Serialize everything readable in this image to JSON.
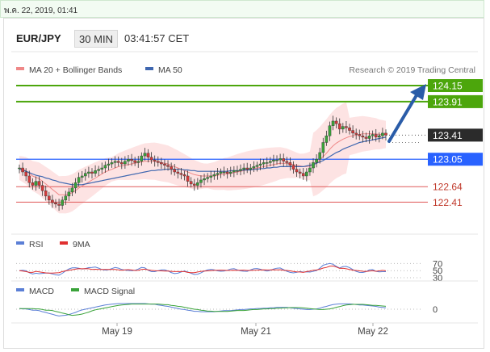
{
  "timestamp": "พ.ค. 22, 2019, 01:41",
  "header": {
    "pair": "EUR/JPY",
    "timeframe": "30 MIN",
    "time": "03:41:57 CET"
  },
  "legend": {
    "ma20": "MA 20 + Bollinger Bands",
    "ma50": "MA 50",
    "credit": "Research © 2019 Trading Central",
    "rsi": "RSI",
    "rsi_ma": "9MA",
    "macd": "MACD",
    "macd_signal": "MACD Signal"
  },
  "colors": {
    "green_line": "#4ca60c",
    "blue_line": "#2962ff",
    "red_line": "#e05a5a",
    "price_box": "#2b2b2b",
    "arrow": "#2a5ca8",
    "bull": "#3aa33a",
    "bear": "#d43a3a",
    "band_fill": "#fde3e3",
    "ma20": "#ef8888",
    "ma50": "#3f67b0"
  },
  "chart_data": {
    "type": "candlestick",
    "y_range": [
      122.2,
      124.3
    ],
    "x_labels": [
      "May 19",
      "May 21",
      "May 22"
    ],
    "levels": [
      {
        "label": "124.15",
        "value": 124.15,
        "kind": "resistance"
      },
      {
        "label": "123.91",
        "value": 123.91,
        "kind": "resistance"
      },
      {
        "label": "123.41",
        "value": 123.41,
        "kind": "last"
      },
      {
        "label": "123.05",
        "value": 123.05,
        "kind": "pivot"
      },
      {
        "label": "122.64",
        "value": 122.64,
        "kind": "support"
      },
      {
        "label": "122.41",
        "value": 122.41,
        "kind": "support"
      }
    ],
    "close": [
      122.92,
      122.86,
      122.8,
      122.7,
      122.66,
      122.72,
      122.66,
      122.58,
      122.5,
      122.44,
      122.4,
      122.38,
      122.36,
      122.44,
      122.5,
      122.56,
      122.62,
      122.7,
      122.78,
      122.8,
      122.84,
      122.86,
      122.84,
      122.88,
      122.9,
      122.92,
      122.96,
      122.98,
      123.0,
      123.02,
      123.0,
      122.98,
      123.02,
      123.05,
      123.03,
      123.0,
      123.02,
      123.1,
      123.14,
      123.08,
      123.04,
      123.02,
      123.0,
      122.98,
      122.96,
      122.94,
      122.9,
      122.86,
      122.84,
      122.82,
      122.8,
      122.72,
      122.68,
      122.66,
      122.7,
      122.74,
      122.76,
      122.78,
      122.8,
      122.82,
      122.84,
      122.86,
      122.86,
      122.84,
      122.86,
      122.88,
      122.88,
      122.9,
      122.92,
      122.9,
      122.92,
      122.94,
      122.96,
      122.98,
      123.0,
      123.0,
      123.02,
      123.04,
      123.04,
      123.06,
      123.02,
      123.0,
      122.96,
      122.9,
      122.86,
      122.84,
      122.8,
      122.86,
      122.92,
      123.0,
      123.05,
      123.15,
      123.3,
      123.4,
      123.55,
      123.62,
      123.58,
      123.5,
      123.54,
      123.52,
      123.48,
      123.44,
      123.42,
      123.4,
      123.38,
      123.36,
      123.4,
      123.42,
      123.38,
      123.4,
      123.44,
      123.41
    ],
    "ma20": [
      122.92,
      122.9,
      122.88,
      122.84,
      122.8,
      122.78,
      122.76,
      122.72,
      122.68,
      122.64,
      122.6,
      122.56,
      122.52,
      122.52,
      122.52,
      122.53,
      122.55,
      122.58,
      122.62,
      122.65,
      122.68,
      122.71,
      122.74,
      122.77,
      122.8,
      122.83,
      122.86,
      122.88,
      122.9,
      122.92,
      122.94,
      122.95,
      122.96,
      122.97,
      122.98,
      122.99,
      123.0,
      123.01,
      123.02,
      123.02,
      123.02,
      123.02,
      123.01,
      123.0,
      122.99,
      122.98,
      122.96,
      122.94,
      122.92,
      122.9,
      122.88,
      122.86,
      122.84,
      122.82,
      122.81,
      122.8,
      122.8,
      122.8,
      122.8,
      122.8,
      122.81,
      122.82,
      122.83,
      122.83,
      122.84,
      122.85,
      122.86,
      122.87,
      122.88,
      122.89,
      122.9,
      122.91,
      122.92,
      122.93,
      122.94,
      122.95,
      122.96,
      122.97,
      122.98,
      122.99,
      122.99,
      122.99,
      122.98,
      122.97,
      122.96,
      122.95,
      122.94,
      122.94,
      122.95,
      122.97,
      123.0,
      123.04,
      123.09,
      123.14,
      123.2,
      123.25,
      123.29,
      123.32,
      123.35,
      123.37,
      123.39,
      123.4,
      123.41,
      123.42,
      123.43,
      123.43,
      123.43,
      123.43,
      123.43,
      123.42,
      123.42,
      123.42
    ],
    "ma50": [
      122.9,
      122.89,
      122.87,
      122.85,
      122.83,
      122.81,
      122.8,
      122.79,
      122.77,
      122.76,
      122.74,
      122.73,
      122.71,
      122.7,
      122.69,
      122.68,
      122.67,
      122.67,
      122.67,
      122.67,
      122.68,
      122.69,
      122.7,
      122.71,
      122.72,
      122.73,
      122.74,
      122.75,
      122.76,
      122.77,
      122.78,
      122.79,
      122.8,
      122.81,
      122.82,
      122.83,
      122.84,
      122.85,
      122.86,
      122.87,
      122.88,
      122.88,
      122.89,
      122.89,
      122.9,
      122.9,
      122.9,
      122.9,
      122.9,
      122.9,
      122.89,
      122.89,
      122.88,
      122.88,
      122.87,
      122.87,
      122.87,
      122.87,
      122.87,
      122.87,
      122.87,
      122.87,
      122.87,
      122.87,
      122.88,
      122.88,
      122.88,
      122.88,
      122.89,
      122.89,
      122.89,
      122.9,
      122.9,
      122.91,
      122.91,
      122.92,
      122.92,
      122.93,
      122.93,
      122.94,
      122.94,
      122.94,
      122.94,
      122.94,
      122.94,
      122.94,
      122.94,
      122.95,
      122.96,
      122.97,
      122.99,
      123.01,
      123.03,
      123.06,
      123.09,
      123.12,
      123.15,
      123.17,
      123.2,
      123.22,
      123.24,
      123.26,
      123.28,
      123.3,
      123.31,
      123.32,
      123.33,
      123.34,
      123.35,
      123.36,
      123.37,
      123.38
    ],
    "rsi_ticks": [
      70,
      50,
      30
    ],
    "macd_ticks": [
      0
    ]
  }
}
